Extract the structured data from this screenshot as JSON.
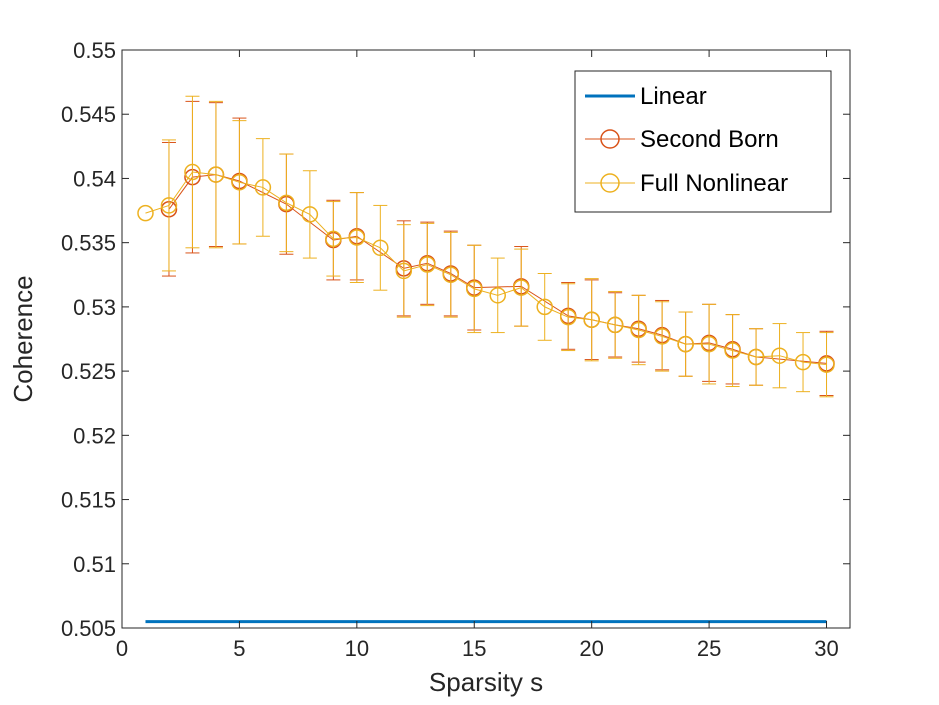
{
  "chart_data": {
    "type": "line",
    "title": "",
    "xlabel": "Sparsity s",
    "ylabel": "Coherence",
    "xlim": [
      0,
      31
    ],
    "ylim": [
      0.505,
      0.55
    ],
    "xticks": [
      0,
      5,
      10,
      15,
      20,
      25,
      30
    ],
    "xtick_labels": [
      "0",
      "5",
      "10",
      "15",
      "20",
      "25",
      "30"
    ],
    "yticks": [
      0.505,
      0.51,
      0.515,
      0.52,
      0.525,
      0.53,
      0.535,
      0.54,
      0.545,
      0.55
    ],
    "ytick_labels": [
      "0.505",
      "0.51",
      "0.515",
      "0.52",
      "0.525",
      "0.53",
      "0.535",
      "0.54",
      "0.545",
      "0.55"
    ],
    "grid": false,
    "legend_position": "top-right",
    "series": [
      {
        "name": "Linear",
        "color": "#0072BD",
        "marker": "none",
        "x": [
          1,
          30
        ],
        "values": [
          0.5055,
          0.5055
        ]
      },
      {
        "name": "Second Born",
        "color": "#D95319",
        "marker": "circle",
        "x": [
          2,
          3,
          4,
          5,
          7,
          9,
          10,
          12,
          13,
          14,
          15,
          17,
          19,
          20,
          21,
          22,
          23,
          24,
          25,
          26,
          27,
          30
        ],
        "values": [
          0.5376,
          0.5401,
          0.5403,
          0.5398,
          0.538,
          0.5352,
          0.5355,
          0.533,
          0.5334,
          0.5326,
          0.5315,
          0.5316,
          0.5293,
          0.529,
          0.5286,
          0.5283,
          0.5278,
          0.5271,
          0.5272,
          0.5267,
          0.5261,
          0.5256
        ],
        "err": [
          0.0052,
          0.0059,
          0.0056,
          0.0049,
          0.0039,
          0.0031,
          0.0034,
          0.0037,
          0.0032,
          0.0033,
          0.0033,
          0.0031,
          0.0026,
          0.0031,
          0.0025,
          0.0026,
          0.0027,
          0.0025,
          0.003,
          0.0027,
          0.0022,
          0.0025
        ]
      },
      {
        "name": "Full Nonlinear",
        "color": "#EDB120",
        "marker": "circle",
        "x": [
          1,
          2,
          3,
          4,
          5,
          6,
          7,
          8,
          9,
          10,
          11,
          12,
          13,
          14,
          15,
          16,
          17,
          18,
          19,
          20,
          21,
          22,
          23,
          24,
          25,
          26,
          27,
          28,
          29,
          30
        ],
        "values": [
          0.5373,
          0.5379,
          0.5405,
          0.5403,
          0.5397,
          0.5393,
          0.5381,
          0.5372,
          0.5353,
          0.5354,
          0.5346,
          0.5328,
          0.5333,
          0.5325,
          0.5314,
          0.5309,
          0.5315,
          0.53,
          0.5292,
          0.529,
          0.5286,
          0.5282,
          0.5277,
          0.5271,
          0.5271,
          0.5266,
          0.5261,
          0.5262,
          0.5257,
          0.5255
        ],
        "err": [
          0,
          0.0051,
          0.0059,
          0.0057,
          0.0048,
          0.0038,
          0.0038,
          0.0034,
          0.0029,
          0.0035,
          0.0033,
          0.0036,
          0.0032,
          0.0033,
          0.0034,
          0.0029,
          0.003,
          0.0026,
          0.0026,
          0.0032,
          0.0026,
          0.0027,
          0.0027,
          0.0025,
          0.0031,
          0.0028,
          0.0022,
          0.0025,
          0.0023,
          0.0025
        ]
      }
    ]
  }
}
